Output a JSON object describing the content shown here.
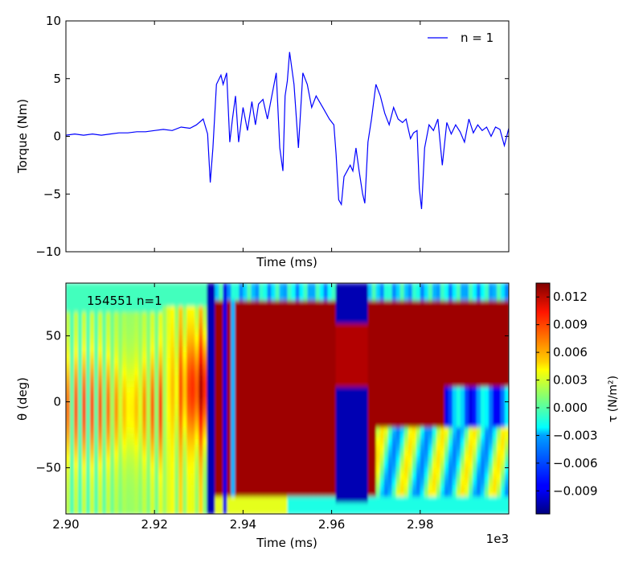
{
  "chart_data": [
    {
      "type": "line",
      "xlabel": "Time (ms)",
      "ylabel": "Torque (Nm)",
      "xlim": [
        2900,
        3000
      ],
      "ylim": [
        -10,
        10
      ],
      "yticks": [
        10,
        5,
        0,
        -5,
        -10
      ],
      "ytick_labels": [
        "10",
        "5",
        "0",
        "−5",
        "−10"
      ],
      "xticks": [
        2920,
        2940,
        2960,
        2980
      ],
      "legend_position": "top-right",
      "series": [
        {
          "name": "n = 1",
          "color": "#0000ff",
          "x": [
            2900,
            2902,
            2904,
            2906,
            2908,
            2910,
            2912,
            2914,
            2916,
            2918,
            2920,
            2922,
            2924,
            2926,
            2928,
            2929.5,
            2931,
            2932,
            2932.6,
            2933.2,
            2934,
            2935,
            2935.5,
            2936.3,
            2937,
            2937.6,
            2938.3,
            2939,
            2940,
            2941,
            2942,
            2942.8,
            2943.5,
            2944.5,
            2945.5,
            2946.5,
            2947.5,
            2948.3,
            2949,
            2949.5,
            2950,
            2950.5,
            2951.5,
            2952.5,
            2953.5,
            2954.5,
            2955.5,
            2956.5,
            2958,
            2959.5,
            2960.5,
            2961,
            2961.6,
            2962.2,
            2962.8,
            2963.5,
            2964.2,
            2964.8,
            2965.5,
            2966.2,
            2967,
            2967.5,
            2968.2,
            2969,
            2970,
            2971,
            2972,
            2973,
            2974,
            2975,
            2976,
            2976.8,
            2977.8,
            2978.5,
            2979.3,
            2979.8,
            2980.3,
            2981,
            2982,
            2983,
            2984,
            2985,
            2986,
            2987,
            2988,
            2989,
            2990,
            2991,
            2992,
            2993,
            2994,
            2995,
            2996,
            2997,
            2998,
            2999,
            3000
          ],
          "y": [
            0.1,
            0.2,
            0.1,
            0.2,
            0.1,
            0.2,
            0.3,
            0.3,
            0.4,
            0.4,
            0.5,
            0.6,
            0.5,
            0.8,
            0.7,
            1.0,
            1.5,
            0.2,
            -4.0,
            -1.0,
            4.5,
            5.3,
            4.5,
            5.5,
            -0.5,
            1.5,
            3.5,
            -0.5,
            2.5,
            0.5,
            3.0,
            1.0,
            2.8,
            3.2,
            1.5,
            3.5,
            5.5,
            -1.0,
            -3.0,
            3.5,
            4.8,
            7.3,
            4.5,
            -1.0,
            5.5,
            4.5,
            2.5,
            3.5,
            2.5,
            1.5,
            1.0,
            -1.5,
            -5.5,
            -5.9,
            -3.5,
            -3.0,
            -2.5,
            -3.0,
            -1.0,
            -3.0,
            -5.0,
            -5.8,
            -0.5,
            1.5,
            4.5,
            3.5,
            2.0,
            1.0,
            2.5,
            1.5,
            1.2,
            1.5,
            -0.2,
            0.3,
            0.5,
            -4.5,
            -6.3,
            -1.0,
            1.0,
            0.5,
            1.5,
            -2.5,
            1.2,
            0.2,
            1.0,
            0.4,
            -0.5,
            1.5,
            0.3,
            1.0,
            0.5,
            0.8,
            0.0,
            0.8,
            0.6,
            -0.8,
            0.7
          ]
        }
      ]
    },
    {
      "type": "heatmap",
      "title": "154551 n=1",
      "xlabel": "Time (ms)",
      "ylabel": "θ (deg)",
      "xlim": [
        2900,
        3000
      ],
      "ylim": [
        -85,
        90
      ],
      "xticks": [
        2900,
        2920,
        2940,
        2960,
        2980
      ],
      "xtick_labels": [
        "2.90",
        "2.92",
        "2.94",
        "2.96",
        "2.98"
      ],
      "x_offset_label": "1e3",
      "yticks": [
        50,
        0,
        -50
      ],
      "ytick_labels": [
        "50",
        "0",
        "−50"
      ],
      "colormap": "jet",
      "colorbar_label": "τ (N/m²)",
      "colorbar_range": [
        -0.0115,
        0.0135
      ],
      "colorbar_ticks": [
        0.012,
        0.009,
        0.006,
        0.003,
        0.0,
        -0.003,
        -0.006,
        -0.009
      ],
      "colorbar_tick_labels": [
        "0.012",
        "0.009",
        "0.006",
        "0.003",
        "0.000",
        "−0.003",
        "−0.006",
        "−0.009"
      ]
    }
  ]
}
